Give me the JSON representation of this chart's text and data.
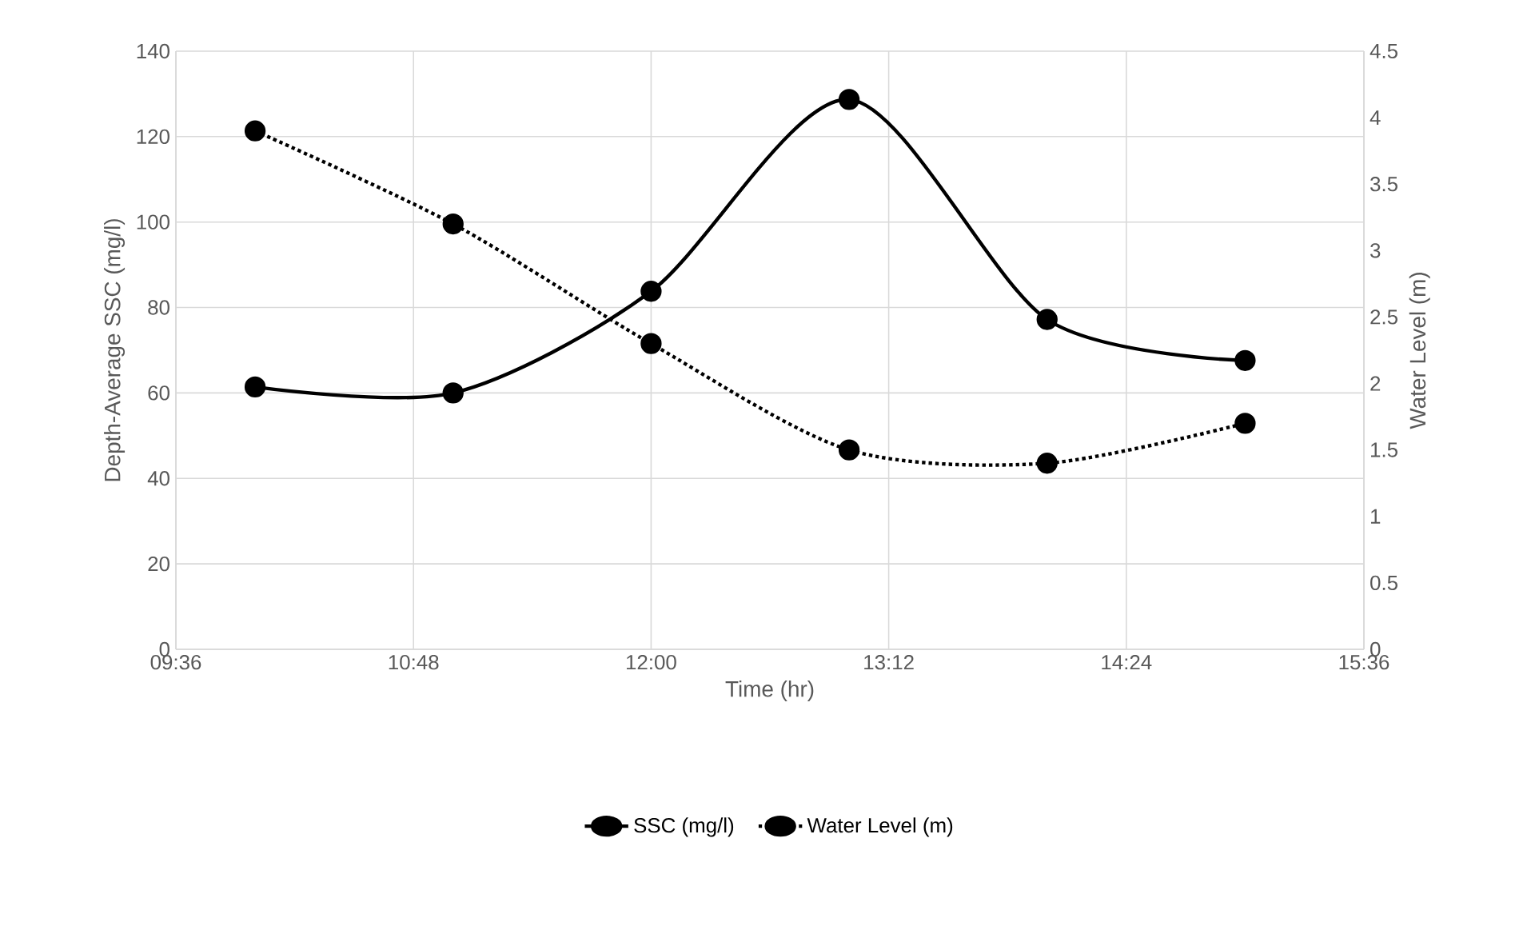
{
  "chart_data": {
    "type": "line",
    "xlabel": "Time (hr)",
    "ylabel": "Depth-Average SSC (mg/l)",
    "y2label": "Water Level (m)",
    "x": [
      10,
      11,
      12,
      13,
      14,
      15
    ],
    "series": [
      {
        "name": "SSC (mg/l)",
        "color": "#000000",
        "line_style": "solid",
        "values": [
          61.4,
          60.0,
          83.8,
          128.7,
          77.2,
          67.6
        ]
      },
      {
        "name": "Water Level (m)",
        "color": "#000000",
        "line_style": "dotted",
        "axis": "y2",
        "values": [
          3.9,
          3.2,
          2.3,
          1.5,
          1.4,
          1.7
        ]
      }
    ],
    "xlim": [
      9.6,
      15.6
    ],
    "xticks": [
      {
        "value": 9.6,
        "label": "09:36"
      },
      {
        "value": 10.8,
        "label": "10:48"
      },
      {
        "value": 12.0,
        "label": "12:00"
      },
      {
        "value": 13.2,
        "label": "13:12"
      },
      {
        "value": 14.4,
        "label": "14:24"
      },
      {
        "value": 15.6,
        "label": "15:36"
      }
    ],
    "ylim": [
      0,
      140
    ],
    "yticks": [
      0,
      20,
      40,
      60,
      80,
      100,
      120,
      140
    ],
    "y2lim": [
      0,
      4.5
    ],
    "y2ticks": [
      0,
      0.5,
      1,
      1.5,
      2,
      2.5,
      3,
      3.5,
      4,
      4.5
    ],
    "grid": true,
    "legend": "bottom",
    "marker": "circle"
  }
}
